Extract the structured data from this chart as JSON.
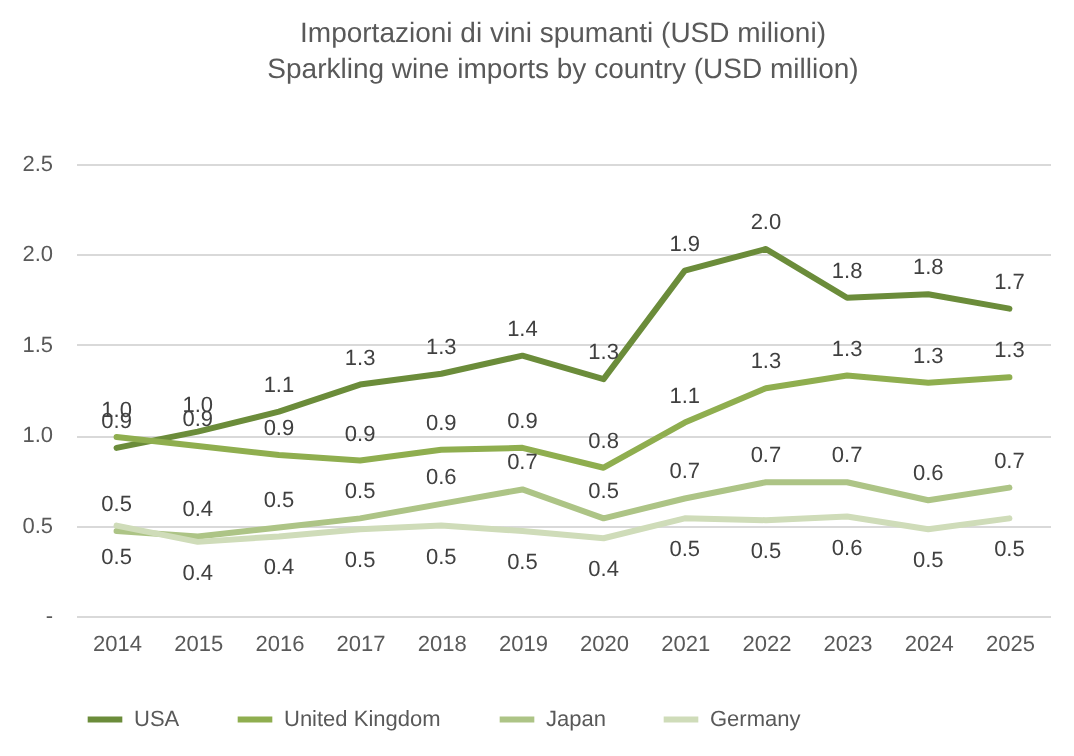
{
  "chart_data": {
    "type": "line",
    "title": "Importazioni di vini spumanti (USD milioni)",
    "subtitle": "Sparkling wine imports by country (USD million)",
    "categories": [
      "2014",
      "2015",
      "2016",
      "2017",
      "2018",
      "2019",
      "2020",
      "2021",
      "2022",
      "2023",
      "2024",
      "2025"
    ],
    "series": [
      {
        "name": "USA",
        "color": "#6b8c3a",
        "values": [
          0.93,
          1.02,
          1.13,
          1.28,
          1.34,
          1.44,
          1.31,
          1.91,
          2.03,
          1.76,
          1.78,
          1.7
        ],
        "value_labels": [
          "0.9",
          "1.0",
          "1.1",
          "1.3",
          "1.3",
          "1.4",
          "1.3",
          "1.9",
          "2.0",
          "1.8",
          "1.8",
          "1.7"
        ]
      },
      {
        "name": "United Kingdom",
        "color": "#8fae4f",
        "values": [
          0.99,
          0.94,
          0.89,
          0.86,
          0.92,
          0.93,
          0.82,
          1.07,
          1.26,
          1.33,
          1.29,
          1.32
        ],
        "value_labels": [
          "1.0",
          "0.9",
          "0.9",
          "0.9",
          "0.9",
          "0.9",
          "0.8",
          "1.1",
          "1.3",
          "1.3",
          "1.3",
          "1.3"
        ]
      },
      {
        "name": "Japan",
        "color": "#adc486",
        "values": [
          0.47,
          0.44,
          0.49,
          0.54,
          0.62,
          0.7,
          0.54,
          0.65,
          0.74,
          0.74,
          0.64,
          0.71
        ],
        "value_labels": [
          "0.5",
          "0.4",
          "0.5",
          "0.5",
          "0.6",
          "0.7",
          "0.5",
          "0.7",
          "0.7",
          "0.7",
          "0.6",
          "0.7"
        ]
      },
      {
        "name": "Germany",
        "color": "#cfdcb9",
        "values": [
          0.5,
          0.41,
          0.44,
          0.48,
          0.5,
          0.47,
          0.43,
          0.54,
          0.53,
          0.55,
          0.48,
          0.54
        ],
        "value_labels": [
          "0.5",
          "0.4",
          "0.4",
          "0.5",
          "0.5",
          "0.5",
          "0.4",
          "0.5",
          "0.5",
          "0.6",
          "0.5",
          "0.5"
        ]
      }
    ],
    "ylim": [
      0,
      2.5
    ],
    "yticks": [
      {
        "value": 0,
        "label": "-"
      },
      "0.5",
      {
        "value": 1,
        "label": "1.0"
      },
      {
        "value": 1.5,
        "label": "1.5"
      },
      {
        "value": 2,
        "label": "2.0"
      },
      {
        "value": 2.5,
        "label": "2.5"
      }
    ],
    "grid": "y",
    "legend": "bottom",
    "marker": "none",
    "line_style": "solid"
  }
}
